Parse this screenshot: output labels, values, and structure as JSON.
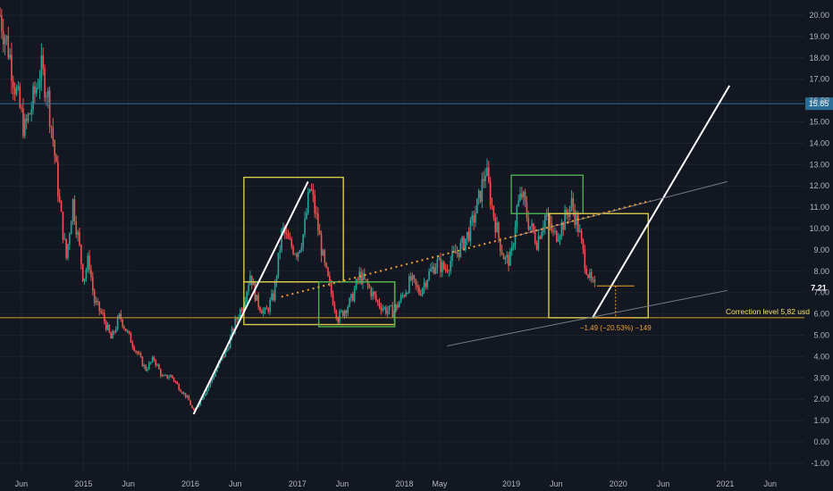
{
  "chart_data": {
    "type": "candlestick",
    "ylim": [
      -1.5,
      20.6
    ],
    "y_ticks": [
      "20.00",
      "19.00",
      "18.00",
      "17.00",
      "16.00",
      "15.00",
      "14.00",
      "13.00",
      "12.00",
      "11.00",
      "10.00",
      "9.00",
      "8.00",
      "7.00",
      "6.00",
      "5.00",
      "4.00",
      "3.00",
      "2.00",
      "1.00",
      "0.00",
      "-1.00"
    ],
    "y_tick_values": [
      20,
      19,
      18,
      17,
      16,
      15,
      14,
      13,
      12,
      11,
      10,
      9,
      8,
      7,
      6,
      5,
      4,
      3,
      2,
      1,
      0,
      -1
    ],
    "x_ticks": [
      "Jun",
      "2015",
      "Jun",
      "2016",
      "Jun",
      "2017",
      "Jun",
      "2018",
      "May",
      "2019",
      "Jun",
      "2020",
      "Jun",
      "2021",
      "Jun"
    ],
    "x_tick_values": [
      2014.42,
      2015.0,
      2015.42,
      2016.0,
      2016.42,
      2017.0,
      2017.42,
      2018.0,
      2018.33,
      2019.0,
      2019.42,
      2020.0,
      2020.42,
      2021.0,
      2021.42
    ],
    "xlim": [
      2014.22,
      2021.74
    ],
    "current_price": "7.21",
    "current_price_value": 7.21,
    "horizontal_level_label": "15.85",
    "horizontal_level_value": 15.85,
    "correction_level_label": "Correction level 5,82 usd",
    "correction_level_value": 5.82,
    "measurement_label": "−1.49 (−20.53%) −149",
    "colors": {
      "up": "#26a69a",
      "down": "#ef5350",
      "background": "#131722",
      "grid": "#1e222d",
      "level_line": "#2a6f97",
      "correction_line": "#c9a227",
      "yellow_box": "#d6c84a",
      "green_box": "#4caf50",
      "trend_dotted": "#f0a030",
      "white_line": "#ffffff",
      "channel_line": "#787b86",
      "price_badge": "#131722"
    },
    "price_path": [
      [
        2014.22,
        20.0
      ],
      [
        2014.3,
        18.4
      ],
      [
        2014.38,
        16.2
      ],
      [
        2014.45,
        14.6
      ],
      [
        2014.52,
        15.8
      ],
      [
        2014.6,
        17.5
      ],
      [
        2014.66,
        16.5
      ],
      [
        2014.72,
        14.0
      ],
      [
        2014.78,
        11.0
      ],
      [
        2014.84,
        8.6
      ],
      [
        2014.9,
        11.3
      ],
      [
        2014.96,
        9.2
      ],
      [
        2015.0,
        7.6
      ],
      [
        2015.05,
        8.6
      ],
      [
        2015.1,
        6.6
      ],
      [
        2015.18,
        5.9
      ],
      [
        2015.26,
        4.8
      ],
      [
        2015.34,
        5.9
      ],
      [
        2015.42,
        5.0
      ],
      [
        2015.5,
        4.2
      ],
      [
        2015.58,
        3.4
      ],
      [
        2015.66,
        3.9
      ],
      [
        2015.74,
        3.0
      ],
      [
        2015.82,
        3.1
      ],
      [
        2015.9,
        2.5
      ],
      [
        2015.98,
        2.0
      ],
      [
        2016.03,
        1.4
      ],
      [
        2016.1,
        2.0
      ],
      [
        2016.18,
        2.7
      ],
      [
        2016.26,
        3.6
      ],
      [
        2016.34,
        4.3
      ],
      [
        2016.42,
        5.6
      ],
      [
        2016.5,
        6.6
      ],
      [
        2016.56,
        7.9
      ],
      [
        2016.62,
        6.6
      ],
      [
        2016.7,
        6.0
      ],
      [
        2016.78,
        6.9
      ],
      [
        2016.86,
        10.0
      ],
      [
        2016.92,
        9.3
      ],
      [
        2017.0,
        8.9
      ],
      [
        2017.06,
        9.8
      ],
      [
        2017.12,
        12.0
      ],
      [
        2017.18,
        10.4
      ],
      [
        2017.25,
        8.3
      ],
      [
        2017.32,
        6.9
      ],
      [
        2017.38,
        5.8
      ],
      [
        2017.44,
        6.2
      ],
      [
        2017.5,
        6.6
      ],
      [
        2017.58,
        7.8
      ],
      [
        2017.66,
        7.3
      ],
      [
        2017.74,
        6.6
      ],
      [
        2017.82,
        6.2
      ],
      [
        2017.9,
        6.1
      ],
      [
        2017.98,
        6.8
      ],
      [
        2018.06,
        7.6
      ],
      [
        2018.14,
        7.0
      ],
      [
        2018.22,
        7.8
      ],
      [
        2018.3,
        8.4
      ],
      [
        2018.38,
        8.1
      ],
      [
        2018.46,
        8.7
      ],
      [
        2018.54,
        9.2
      ],
      [
        2018.62,
        10.0
      ],
      [
        2018.7,
        11.4
      ],
      [
        2018.76,
        12.8
      ],
      [
        2018.82,
        11.0
      ],
      [
        2018.88,
        9.6
      ],
      [
        2018.94,
        8.5
      ],
      [
        2019.0,
        8.6
      ],
      [
        2019.05,
        10.9
      ],
      [
        2019.1,
        11.6
      ],
      [
        2019.16,
        10.3
      ],
      [
        2019.24,
        9.4
      ],
      [
        2019.32,
        10.7
      ],
      [
        2019.4,
        9.6
      ],
      [
        2019.48,
        10.2
      ],
      [
        2019.56,
        11.2
      ],
      [
        2019.62,
        10.2
      ],
      [
        2019.68,
        8.6
      ],
      [
        2019.74,
        7.5
      ],
      [
        2019.78,
        7.21
      ]
    ]
  }
}
